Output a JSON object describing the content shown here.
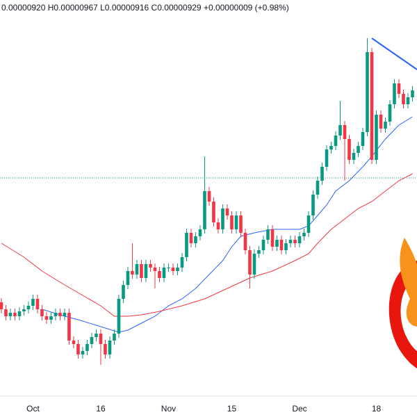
{
  "chart_data": {
    "type": "candlestick",
    "legend_text": "0.00000920 H0.00000967 L0.00000916 C0.00000929 +0.00000009 (+0.98%)",
    "categories": [
      null,
      null,
      null,
      null,
      null,
      null,
      null,
      "Oct",
      null,
      null,
      null,
      null,
      null,
      null,
      null,
      null,
      null,
      null,
      null,
      null,
      null,
      null,
      "16",
      null,
      null,
      null,
      null,
      null,
      null,
      null,
      null,
      null,
      null,
      null,
      null,
      null,
      null,
      "Nov",
      null,
      null,
      null,
      null,
      null,
      null,
      null,
      null,
      null,
      null,
      null,
      null,
      null,
      "15",
      null,
      null,
      null,
      null,
      null,
      null,
      null,
      null,
      null,
      null,
      null,
      null,
      null,
      null,
      "Dec",
      null,
      null,
      null,
      null,
      null,
      null,
      null,
      null,
      null,
      null,
      null,
      null,
      null,
      null,
      null,
      null,
      "18",
      null,
      null,
      null,
      null,
      null,
      null,
      null,
      null
    ],
    "ohlc": [
      [
        165,
        171,
        149,
        155
      ],
      [
        155,
        161,
        139,
        145
      ],
      [
        145,
        156,
        139,
        150
      ],
      [
        150,
        156,
        139,
        145
      ],
      [
        145,
        158,
        139,
        152
      ],
      [
        152,
        161,
        146,
        155
      ],
      [
        155,
        166,
        149,
        160
      ],
      [
        160,
        176,
        154,
        170
      ],
      [
        170,
        176,
        149,
        155
      ],
      [
        155,
        161,
        139,
        145
      ],
      [
        145,
        151,
        134,
        140
      ],
      [
        140,
        151,
        134,
        145
      ],
      [
        145,
        156,
        139,
        150
      ],
      [
        150,
        156,
        139,
        145
      ],
      [
        145,
        156,
        139,
        150
      ],
      [
        150,
        156,
        104,
        110
      ],
      [
        110,
        116,
        99,
        105
      ],
      [
        105,
        111,
        84,
        90
      ],
      [
        90,
        101,
        84,
        95
      ],
      [
        95,
        111,
        89,
        105
      ],
      [
        105,
        121,
        99,
        115
      ],
      [
        115,
        126,
        109,
        120
      ],
      [
        120,
        126,
        75,
        105
      ],
      [
        105,
        111,
        84,
        90
      ],
      [
        90,
        116,
        84,
        110
      ],
      [
        110,
        126,
        104,
        120
      ],
      [
        120,
        176,
        114,
        170
      ],
      [
        170,
        196,
        164,
        190
      ],
      [
        190,
        216,
        184,
        210
      ],
      [
        210,
        250,
        199,
        205
      ],
      [
        205,
        226,
        199,
        220
      ],
      [
        220,
        226,
        194,
        200
      ],
      [
        200,
        226,
        194,
        220
      ],
      [
        220,
        226,
        209,
        215
      ],
      [
        215,
        221,
        185,
        210
      ],
      [
        210,
        216,
        194,
        200
      ],
      [
        200,
        221,
        194,
        215
      ],
      [
        215,
        221,
        209,
        215
      ],
      [
        215,
        221,
        204,
        210
      ],
      [
        210,
        221,
        204,
        215
      ],
      [
        215,
        236,
        209,
        230
      ],
      [
        230,
        271,
        224,
        265
      ],
      [
        265,
        271,
        244,
        250
      ],
      [
        250,
        266,
        244,
        260
      ],
      [
        260,
        276,
        254,
        270
      ],
      [
        270,
        375,
        264,
        325
      ],
      [
        325,
        331,
        304,
        310
      ],
      [
        310,
        316,
        274,
        280
      ],
      [
        280,
        286,
        264,
        270
      ],
      [
        270,
        306,
        264,
        300
      ],
      [
        300,
        306,
        284,
        290
      ],
      [
        290,
        296,
        264,
        270
      ],
      [
        270,
        296,
        264,
        290
      ],
      [
        290,
        296,
        259,
        265
      ],
      [
        265,
        271,
        234,
        240
      ],
      [
        240,
        246,
        185,
        205
      ],
      [
        205,
        241,
        199,
        235
      ],
      [
        235,
        246,
        229,
        240
      ],
      [
        240,
        261,
        234,
        255
      ],
      [
        255,
        276,
        249,
        270
      ],
      [
        270,
        276,
        239,
        245
      ],
      [
        245,
        261,
        239,
        255
      ],
      [
        255,
        261,
        234,
        240
      ],
      [
        240,
        256,
        234,
        250
      ],
      [
        250,
        261,
        244,
        255
      ],
      [
        255,
        261,
        244,
        250
      ],
      [
        250,
        266,
        244,
        260
      ],
      [
        260,
        271,
        254,
        265
      ],
      [
        265,
        296,
        259,
        290
      ],
      [
        290,
        326,
        284,
        320
      ],
      [
        320,
        346,
        314,
        340
      ],
      [
        340,
        366,
        334,
        360
      ],
      [
        360,
        391,
        354,
        385
      ],
      [
        385,
        396,
        379,
        390
      ],
      [
        390,
        411,
        384,
        405
      ],
      [
        405,
        455,
        399,
        420
      ],
      [
        420,
        426,
        340,
        400
      ],
      [
        400,
        406,
        364,
        370
      ],
      [
        370,
        386,
        364,
        380
      ],
      [
        380,
        396,
        374,
        390
      ],
      [
        390,
        416,
        384,
        410
      ],
      [
        410,
        545,
        404,
        525
      ],
      [
        525,
        531,
        364,
        370
      ],
      [
        370,
        441,
        364,
        435
      ],
      [
        435,
        441,
        409,
        415
      ],
      [
        415,
        431,
        409,
        425
      ],
      [
        425,
        456,
        419,
        450
      ],
      [
        450,
        486,
        444,
        480
      ],
      [
        480,
        486,
        459,
        465
      ],
      [
        465,
        471,
        444,
        450
      ],
      [
        450,
        466,
        444,
        460
      ],
      [
        460,
        476,
        454,
        470
      ]
    ],
    "up_color": "#089981",
    "down_color": "#f23645",
    "ma_lines": [
      {
        "color": "#2962ff",
        "x": [
          9,
          14,
          17,
          22,
          26,
          28,
          31,
          34,
          37,
          40,
          43,
          46,
          49,
          51,
          53,
          56,
          60,
          63,
          66,
          68,
          70,
          72,
          74,
          77,
          80,
          82,
          85,
          88,
          91
        ],
        "values": [
          155,
          145,
          140,
          130,
          122,
          125,
          135,
          145,
          160,
          170,
          185,
          205,
          225,
          245,
          260,
          265,
          270,
          270,
          270,
          275,
          290,
          305,
          325,
          340,
          360,
          375,
          400,
          420,
          432
        ]
      },
      {
        "color": "#f23645",
        "x": [
          0,
          5,
          9,
          14,
          18,
          22,
          25,
          28,
          31,
          35,
          40,
          45,
          50,
          55,
          60,
          65,
          68,
          70,
          73,
          76,
          79,
          82,
          85,
          88,
          91
        ],
        "values": [
          250,
          230,
          210,
          190,
          175,
          160,
          145,
          145,
          147,
          152,
          160,
          170,
          185,
          200,
          210,
          225,
          235,
          250,
          270,
          285,
          300,
          310,
          325,
          340,
          350
        ]
      }
    ],
    "trendline": {
      "color": "#2962ff",
      "x": [
        82,
        92
      ],
      "values": [
        545,
        500
      ]
    },
    "price_line": {
      "value": 344,
      "color": "#089981"
    },
    "xlim": [
      -0.3,
      92
    ],
    "ylim": [
      0,
      600
    ]
  }
}
